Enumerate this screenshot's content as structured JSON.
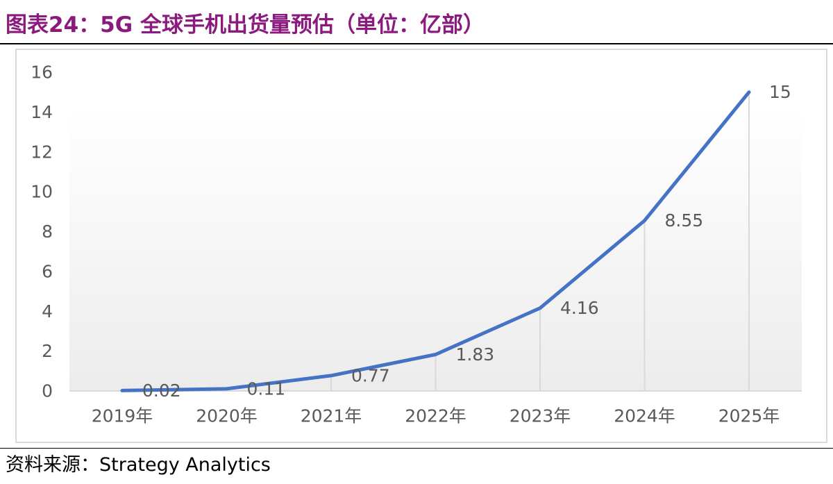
{
  "figure": {
    "title": "图表24：5G 全球手机出货量预估（单位：亿部）",
    "source": "资料来源：Strategy Analytics"
  },
  "colors": {
    "title": "#8b1a7e",
    "line": "#4472c4",
    "axis_text": "#595959",
    "gridline": "#d9d9d9"
  },
  "chart_data": {
    "type": "line",
    "title": "",
    "xlabel": "",
    "ylabel": "",
    "categories": [
      "2019年",
      "2020年",
      "2021年",
      "2022年",
      "2023年",
      "2024年",
      "2025年"
    ],
    "series": [
      {
        "values": [
          0.02,
          0.11,
          0.77,
          1.83,
          4.16,
          8.55,
          15
        ]
      }
    ],
    "data_labels": [
      "0.02",
      "0.11",
      "0.77",
      "1.83",
      "4.16",
      "8.55",
      "15"
    ],
    "ylim": [
      0,
      16
    ],
    "yticks": [
      0,
      2,
      4,
      6,
      8,
      10,
      12,
      14,
      16
    ],
    "ytick_labels": [
      "0",
      "2",
      "4",
      "6",
      "8",
      "10",
      "12",
      "14",
      "16"
    ],
    "grid": false,
    "drop_lines": true,
    "legend": "none"
  }
}
